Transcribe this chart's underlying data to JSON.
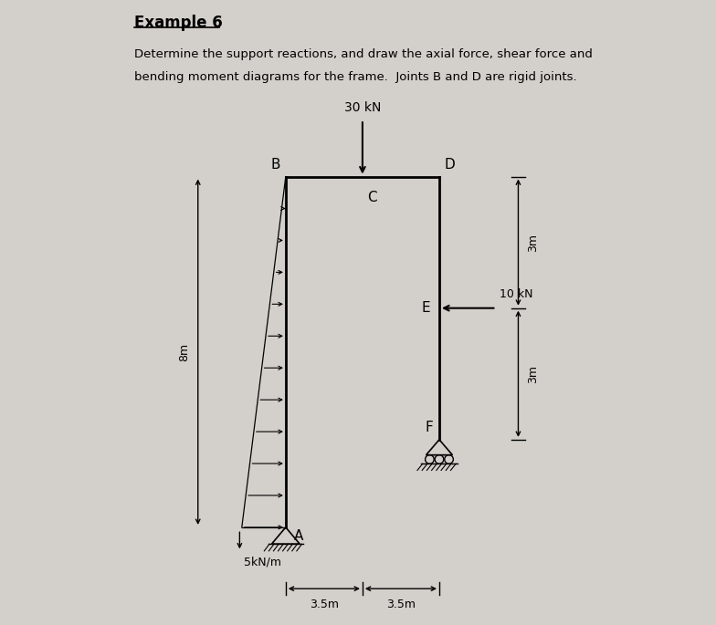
{
  "title": "Example 6",
  "description_line1": "Determine the support reactions, and draw the axial force, shear force and",
  "description_line2": "bending moment diagrams for the frame.  Joints B and D are rigid joints.",
  "bg_color": "#d3d0cb",
  "frame_color": "#000000",
  "label_5kNm": "5kN/m",
  "label_30kN": "30 kN",
  "label_10kN": "10 kN",
  "label_8m": "8m",
  "dim_35a_label": "3.5m",
  "dim_35b_label": "3.5m",
  "dim_3m_top_label": "3m",
  "dim_3m_bot_label": "3m",
  "A": [
    3.5,
    0.0
  ],
  "B": [
    3.5,
    8.0
  ],
  "D": [
    7.0,
    8.0
  ],
  "E": [
    7.0,
    5.0
  ],
  "F": [
    7.0,
    2.0
  ]
}
